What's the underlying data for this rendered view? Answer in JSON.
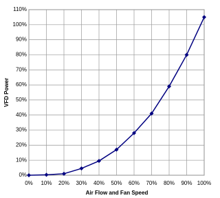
{
  "chart_data": {
    "type": "line",
    "x_label": "Air Flow and Fan Speed",
    "y_label": "VFD Power",
    "x": [
      0,
      10,
      20,
      30,
      40,
      50,
      60,
      70,
      80,
      90,
      100
    ],
    "series": [
      {
        "color": "#000080",
        "values": [
          0,
          0.3,
          1,
          4.5,
          9.5,
          17,
          28,
          41,
          59,
          80,
          105
        ]
      }
    ],
    "xlim": [
      0,
      100
    ],
    "ylim": [
      0,
      110
    ],
    "xticks": [
      {
        "value": 0,
        "label": "0%"
      },
      {
        "value": 10,
        "label": "10%"
      },
      {
        "value": 20,
        "label": "20%"
      },
      {
        "value": 30,
        "label": "30%"
      },
      {
        "value": 40,
        "label": "40%"
      },
      {
        "value": 50,
        "label": "50%"
      },
      {
        "value": 60,
        "label": "60%"
      },
      {
        "value": 70,
        "label": "70%"
      },
      {
        "value": 80,
        "label": "80%"
      },
      {
        "value": 90,
        "label": "90%"
      },
      {
        "value": 100,
        "label": "100%"
      }
    ],
    "yticks": [
      {
        "value": 0,
        "label": "0%"
      },
      {
        "value": 10,
        "label": "10%"
      },
      {
        "value": 20,
        "label": "20%"
      },
      {
        "value": 30,
        "label": "30%"
      },
      {
        "value": 40,
        "label": "40%"
      },
      {
        "value": 50,
        "label": "50%"
      },
      {
        "value": 60,
        "label": "60%"
      },
      {
        "value": 70,
        "label": "70%"
      },
      {
        "value": 80,
        "label": "80%"
      },
      {
        "value": 90,
        "label": "90%"
      },
      {
        "value": 100,
        "label": "100%"
      },
      {
        "value": 110,
        "label": "110%"
      }
    ],
    "grid": true
  }
}
